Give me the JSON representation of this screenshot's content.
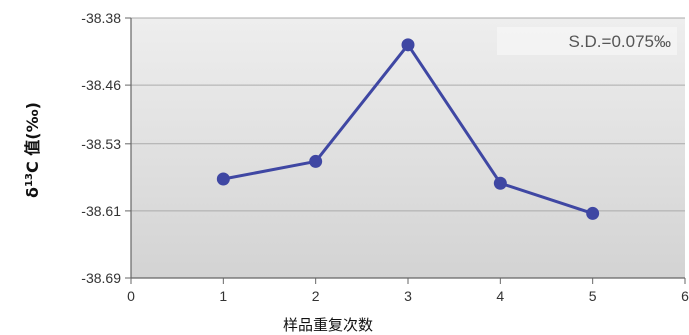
{
  "chart_data": {
    "type": "line",
    "xlabel": "样品重复次数",
    "ylabel": {
      "prefix": "δ",
      "sup": "13",
      "suffix": "C 值(‰)"
    },
    "annotation": "S.D.=0.075‰",
    "xlim": [
      0,
      6
    ],
    "ylim": [
      -38.69,
      -38.38
    ],
    "x_ticks": [
      0,
      1,
      2,
      3,
      4,
      5,
      6
    ],
    "x_tick_labels": [
      "0",
      "1",
      "2",
      "3",
      "4",
      "5",
      "6"
    ],
    "y_ticks": [
      -38.38,
      -38.46,
      -38.53,
      -38.61,
      -38.69
    ],
    "y_tick_labels": [
      "-38.38",
      "-38.46",
      "-38.53",
      "-38.61",
      "-38.69"
    ],
    "grid": {
      "horizontal": true,
      "vertical": false
    },
    "series": [
      {
        "x": [
          1,
          2,
          3,
          4,
          5
        ],
        "y": [
          -38.572,
          -38.551,
          -38.412,
          -38.577,
          -38.613
        ]
      }
    ],
    "colors": {
      "line": "#3f47a3",
      "marker": "#3f47a3",
      "plot_bg_top": "#eeeeee",
      "plot_bg_bottom": "#d3d3d3",
      "grid": "#ababab",
      "axis": "#666666"
    }
  }
}
